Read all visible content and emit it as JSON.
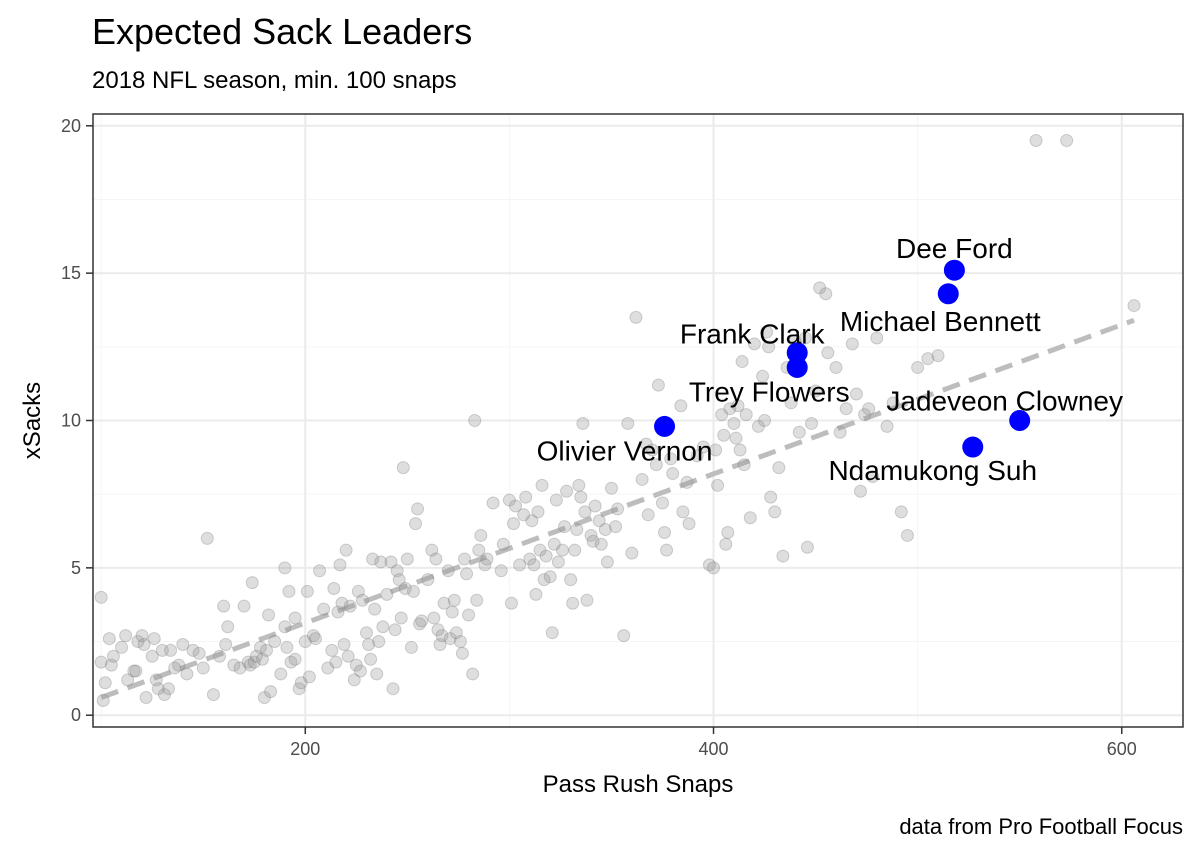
{
  "chart_data": {
    "type": "scatter",
    "title": "Expected Sack Leaders",
    "subtitle": "2018 NFL season, min. 100 snaps",
    "caption": "data from Pro Football Focus",
    "xlabel": "Pass Rush Snaps",
    "ylabel": "xSacks",
    "xlim": [
      96,
      630
    ],
    "ylim": [
      -0.4,
      20.4
    ],
    "xticks": [
      200,
      400,
      600
    ],
    "yticks": [
      0,
      5,
      10,
      15,
      20
    ],
    "grid": true,
    "colors": {
      "background_points": "#999999",
      "highlight": "#0000ff",
      "trend": "#bdbdbd",
      "grid_major": "#ebebeb",
      "grid_minor": "#f5f5f5",
      "border": "#333333"
    },
    "trend_line": {
      "style": "dashed",
      "x": [
        100,
        606
      ],
      "y": [
        0.6,
        13.4
      ]
    },
    "highlighted": [
      {
        "name": "Dee Ford",
        "x": 518,
        "y": 15.1
      },
      {
        "name": "Michael Bennett",
        "x": 515,
        "y": 14.3
      },
      {
        "name": "Frank Clark",
        "x": 441,
        "y": 12.3
      },
      {
        "name": "Trey Flowers",
        "x": 441,
        "y": 11.8
      },
      {
        "name": "Olivier Vernon",
        "x": 376,
        "y": 9.8
      },
      {
        "name": "Jadeveon Clowney",
        "x": 550,
        "y": 10.0
      },
      {
        "name": "Ndamukong Suh",
        "x": 527,
        "y": 9.1
      }
    ],
    "points": [
      [
        100,
        4.0
      ],
      [
        100,
        1.8
      ],
      [
        101,
        0.5
      ],
      [
        102,
        1.1
      ],
      [
        104,
        2.6
      ],
      [
        105,
        1.7
      ],
      [
        106,
        2.0
      ],
      [
        110,
        2.3
      ],
      [
        112,
        2.7
      ],
      [
        113,
        1.2
      ],
      [
        116,
        1.5
      ],
      [
        117,
        1.5
      ],
      [
        118,
        2.5
      ],
      [
        120,
        2.7
      ],
      [
        121,
        2.4
      ],
      [
        122,
        0.6
      ],
      [
        125,
        2.0
      ],
      [
        126,
        2.6
      ],
      [
        127,
        1.2
      ],
      [
        128,
        0.9
      ],
      [
        130,
        2.2
      ],
      [
        131,
        0.7
      ],
      [
        133,
        0.9
      ],
      [
        134,
        2.2
      ],
      [
        136,
        1.6
      ],
      [
        138,
        1.7
      ],
      [
        140,
        2.4
      ],
      [
        142,
        1.4
      ],
      [
        145,
        2.2
      ],
      [
        148,
        2.1
      ],
      [
        150,
        1.6
      ],
      [
        152,
        6.0
      ],
      [
        155,
        0.7
      ],
      [
        158,
        2.0
      ],
      [
        160,
        3.7
      ],
      [
        161,
        2.4
      ],
      [
        162,
        3.0
      ],
      [
        165,
        1.7
      ],
      [
        168,
        1.6
      ],
      [
        170,
        3.7
      ],
      [
        172,
        1.8
      ],
      [
        173,
        1.7
      ],
      [
        174,
        4.5
      ],
      [
        175,
        1.8
      ],
      [
        176,
        2.0
      ],
      [
        178,
        2.3
      ],
      [
        179,
        1.9
      ],
      [
        180,
        0.6
      ],
      [
        181,
        2.2
      ],
      [
        182,
        3.4
      ],
      [
        183,
        0.8
      ],
      [
        185,
        2.5
      ],
      [
        188,
        1.4
      ],
      [
        190,
        3.0
      ],
      [
        190,
        5.0
      ],
      [
        191,
        2.3
      ],
      [
        192,
        4.2
      ],
      [
        193,
        1.8
      ],
      [
        195,
        1.9
      ],
      [
        195,
        3.3
      ],
      [
        197,
        0.9
      ],
      [
        198,
        1.1
      ],
      [
        200,
        2.5
      ],
      [
        201,
        4.2
      ],
      [
        202,
        1.3
      ],
      [
        204,
        2.7
      ],
      [
        205,
        2.6
      ],
      [
        207,
        4.9
      ],
      [
        209,
        3.6
      ],
      [
        211,
        1.6
      ],
      [
        213,
        2.2
      ],
      [
        214,
        4.3
      ],
      [
        215,
        1.8
      ],
      [
        216,
        3.5
      ],
      [
        217,
        5.1
      ],
      [
        218,
        3.8
      ],
      [
        219,
        2.4
      ],
      [
        220,
        5.6
      ],
      [
        221,
        2.0
      ],
      [
        222,
        3.7
      ],
      [
        224,
        1.2
      ],
      [
        225,
        1.7
      ],
      [
        226,
        4.2
      ],
      [
        227,
        1.5
      ],
      [
        228,
        3.9
      ],
      [
        230,
        2.8
      ],
      [
        231,
        2.4
      ],
      [
        232,
        1.9
      ],
      [
        233,
        5.3
      ],
      [
        234,
        3.6
      ],
      [
        235,
        1.4
      ],
      [
        236,
        2.5
      ],
      [
        237,
        5.2
      ],
      [
        238,
        3.0
      ],
      [
        240,
        4.1
      ],
      [
        242,
        5.2
      ],
      [
        243,
        0.9
      ],
      [
        244,
        2.9
      ],
      [
        245,
        4.9
      ],
      [
        246,
        4.6
      ],
      [
        247,
        3.3
      ],
      [
        248,
        8.4
      ],
      [
        249,
        4.3
      ],
      [
        250,
        5.3
      ],
      [
        252,
        2.3
      ],
      [
        253,
        4.2
      ],
      [
        254,
        6.5
      ],
      [
        255,
        7.0
      ],
      [
        256,
        3.1
      ],
      [
        257,
        3.2
      ],
      [
        260,
        4.6
      ],
      [
        262,
        5.6
      ],
      [
        263,
        3.3
      ],
      [
        264,
        5.3
      ],
      [
        265,
        2.9
      ],
      [
        266,
        2.4
      ],
      [
        267,
        2.7
      ],
      [
        268,
        3.8
      ],
      [
        270,
        4.9
      ],
      [
        271,
        2.6
      ],
      [
        272,
        3.5
      ],
      [
        273,
        3.9
      ],
      [
        274,
        2.8
      ],
      [
        276,
        2.5
      ],
      [
        277,
        2.1
      ],
      [
        278,
        5.3
      ],
      [
        279,
        4.8
      ],
      [
        280,
        3.4
      ],
      [
        282,
        1.4
      ],
      [
        283,
        10.0
      ],
      [
        284,
        3.9
      ],
      [
        285,
        5.6
      ],
      [
        286,
        6.1
      ],
      [
        288,
        5.1
      ],
      [
        289,
        5.3
      ],
      [
        292,
        7.2
      ],
      [
        296,
        4.9
      ],
      [
        297,
        5.8
      ],
      [
        300,
        7.3
      ],
      [
        301,
        3.8
      ],
      [
        302,
        6.5
      ],
      [
        303,
        7.1
      ],
      [
        305,
        5.1
      ],
      [
        307,
        6.8
      ],
      [
        308,
        7.4
      ],
      [
        310,
        5.3
      ],
      [
        311,
        6.6
      ],
      [
        312,
        5.1
      ],
      [
        313,
        4.1
      ],
      [
        314,
        6.9
      ],
      [
        315,
        5.6
      ],
      [
        316,
        7.8
      ],
      [
        317,
        4.6
      ],
      [
        318,
        5.4
      ],
      [
        320,
        4.7
      ],
      [
        321,
        2.8
      ],
      [
        322,
        5.8
      ],
      [
        323,
        7.3
      ],
      [
        324,
        5.2
      ],
      [
        326,
        5.6
      ],
      [
        327,
        6.4
      ],
      [
        328,
        7.6
      ],
      [
        330,
        4.6
      ],
      [
        331,
        3.8
      ],
      [
        332,
        5.6
      ],
      [
        333,
        6.3
      ],
      [
        334,
        7.8
      ],
      [
        335,
        7.4
      ],
      [
        336,
        9.9
      ],
      [
        337,
        6.9
      ],
      [
        338,
        3.9
      ],
      [
        340,
        6.1
      ],
      [
        341,
        5.9
      ],
      [
        342,
        7.1
      ],
      [
        344,
        6.6
      ],
      [
        345,
        5.8
      ],
      [
        347,
        6.3
      ],
      [
        348,
        5.2
      ],
      [
        350,
        7.7
      ],
      [
        352,
        6.4
      ],
      [
        353,
        7.0
      ],
      [
        356,
        2.7
      ],
      [
        358,
        9.9
      ],
      [
        360,
        5.5
      ],
      [
        362,
        13.5
      ],
      [
        365,
        8.0
      ],
      [
        367,
        9.2
      ],
      [
        368,
        6.8
      ],
      [
        370,
        9.0
      ],
      [
        372,
        8.5
      ],
      [
        373,
        11.2
      ],
      [
        375,
        7.2
      ],
      [
        376,
        6.2
      ],
      [
        377,
        5.6
      ],
      [
        379,
        8.7
      ],
      [
        380,
        8.2
      ],
      [
        384,
        10.5
      ],
      [
        385,
        6.9
      ],
      [
        387,
        7.9
      ],
      [
        388,
        6.5
      ],
      [
        392,
        8.8
      ],
      [
        395,
        9.1
      ],
      [
        398,
        5.1
      ],
      [
        400,
        5.0
      ],
      [
        401,
        9.0
      ],
      [
        402,
        7.8
      ],
      [
        404,
        10.2
      ],
      [
        405,
        9.5
      ],
      [
        406,
        5.8
      ],
      [
        407,
        6.2
      ],
      [
        408,
        10.4
      ],
      [
        410,
        9.9
      ],
      [
        411,
        9.4
      ],
      [
        412,
        10.5
      ],
      [
        413,
        9.0
      ],
      [
        414,
        12.0
      ],
      [
        415,
        8.5
      ],
      [
        416,
        10.2
      ],
      [
        418,
        6.7
      ],
      [
        420,
        12.6
      ],
      [
        422,
        9.8
      ],
      [
        424,
        11.5
      ],
      [
        425,
        10.0
      ],
      [
        426,
        13.0
      ],
      [
        427,
        12.5
      ],
      [
        428,
        7.4
      ],
      [
        430,
        6.9
      ],
      [
        432,
        8.4
      ],
      [
        434,
        5.4
      ],
      [
        436,
        11.8
      ],
      [
        438,
        10.6
      ],
      [
        440,
        12.7
      ],
      [
        442,
        9.6
      ],
      [
        445,
        12.8
      ],
      [
        446,
        5.7
      ],
      [
        448,
        9.9
      ],
      [
        450,
        11.0
      ],
      [
        452,
        14.5
      ],
      [
        455,
        14.3
      ],
      [
        456,
        12.3
      ],
      [
        460,
        11.8
      ],
      [
        462,
        9.6
      ],
      [
        465,
        10.4
      ],
      [
        468,
        12.6
      ],
      [
        470,
        10.9
      ],
      [
        472,
        7.6
      ],
      [
        474,
        10.2
      ],
      [
        476,
        10.4
      ],
      [
        478,
        8.1
      ],
      [
        480,
        12.8
      ],
      [
        485,
        9.8
      ],
      [
        488,
        10.6
      ],
      [
        492,
        6.9
      ],
      [
        495,
        6.1
      ],
      [
        500,
        11.8
      ],
      [
        505,
        12.1
      ],
      [
        510,
        12.2
      ],
      [
        558,
        19.5
      ],
      [
        573,
        19.5
      ],
      [
        606,
        13.9
      ]
    ]
  }
}
